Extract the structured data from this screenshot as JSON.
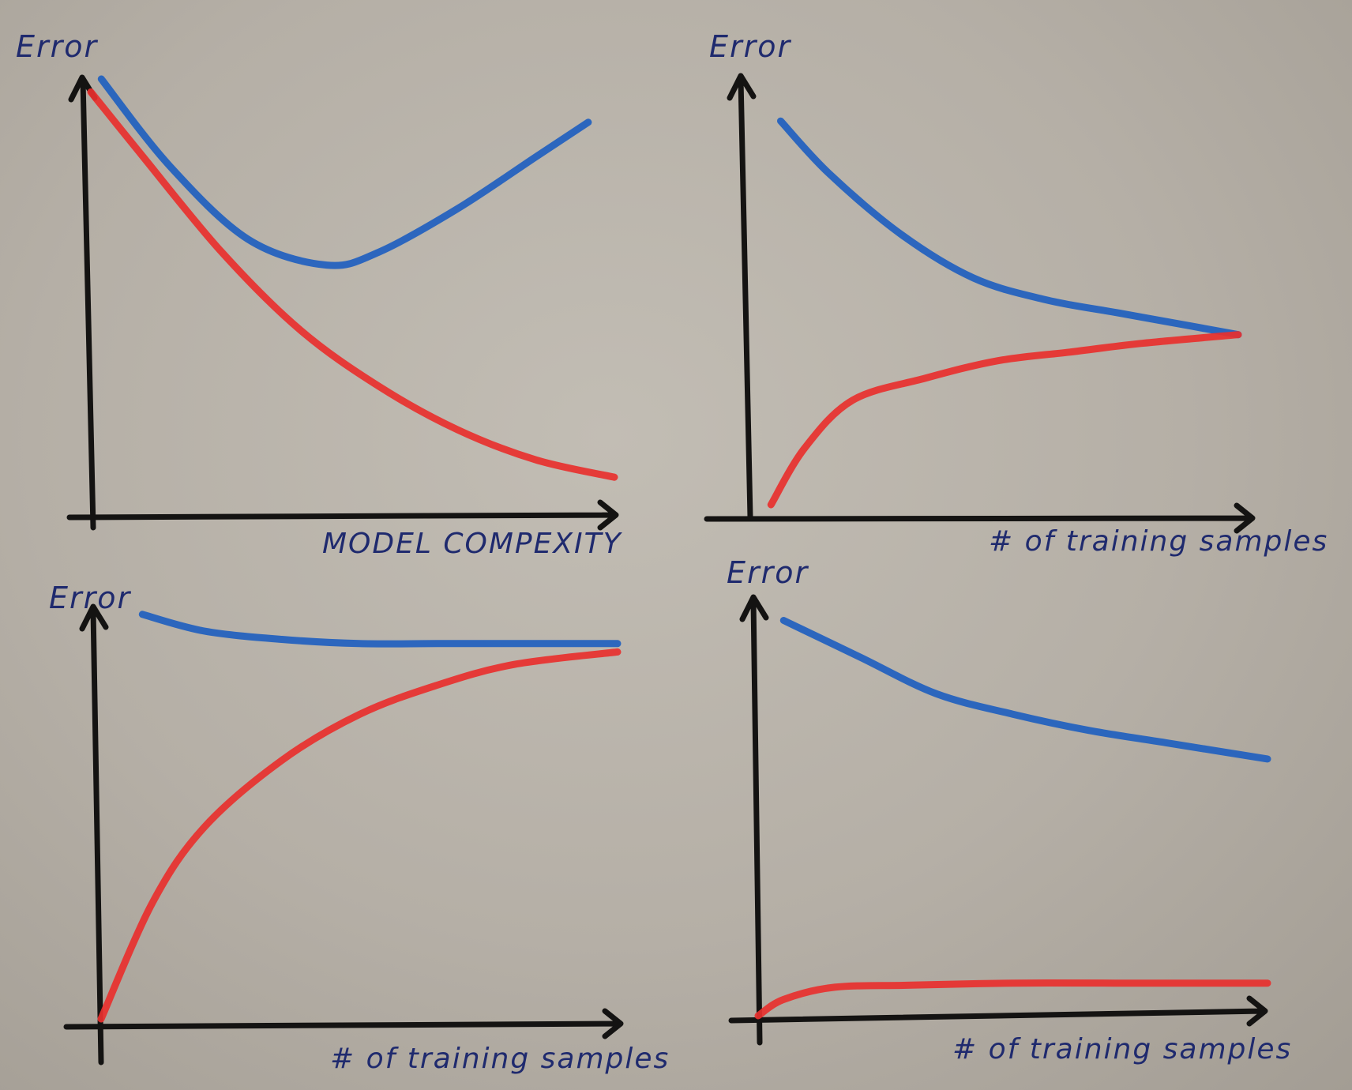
{
  "colors": {
    "validation": "#1f5fbf",
    "training": "#e8302e",
    "axis": "#141312",
    "ink": "#1f2a6e"
  },
  "chart_data": [
    {
      "type": "line",
      "ylabel": "Error",
      "xlabel": "MODEL COMPEXITY",
      "xlim": [
        0,
        1
      ],
      "ylim": [
        0,
        1
      ],
      "grid": false,
      "series": [
        {
          "color": "blue",
          "x": [
            0.02,
            0.15,
            0.3,
            0.45,
            0.55,
            0.7,
            0.85,
            0.95
          ],
          "y": [
            1.0,
            0.8,
            0.63,
            0.57,
            0.6,
            0.7,
            0.82,
            0.9
          ]
        },
        {
          "color": "red",
          "x": [
            0.0,
            0.1,
            0.25,
            0.4,
            0.55,
            0.7,
            0.85,
            1.0
          ],
          "y": [
            0.97,
            0.82,
            0.6,
            0.42,
            0.29,
            0.19,
            0.12,
            0.08
          ]
        }
      ]
    },
    {
      "type": "line",
      "ylabel": "Error",
      "xlabel": "# of training samples",
      "xlim": [
        0,
        1
      ],
      "ylim": [
        0,
        1
      ],
      "grid": false,
      "series": [
        {
          "color": "blue",
          "x": [
            0.05,
            0.15,
            0.3,
            0.45,
            0.6,
            0.75,
            0.9,
            1.0
          ],
          "y": [
            0.9,
            0.78,
            0.64,
            0.54,
            0.49,
            0.46,
            0.43,
            0.41
          ]
        },
        {
          "color": "red",
          "x": [
            0.03,
            0.1,
            0.2,
            0.35,
            0.5,
            0.65,
            0.8,
            1.0
          ],
          "y": [
            0.02,
            0.15,
            0.26,
            0.31,
            0.35,
            0.37,
            0.39,
            0.41
          ]
        }
      ]
    },
    {
      "type": "line",
      "ylabel": "Error",
      "xlabel": "# of training samples",
      "xlim": [
        0,
        1
      ],
      "ylim": [
        0,
        1
      ],
      "grid": false,
      "series": [
        {
          "color": "blue",
          "x": [
            0.08,
            0.2,
            0.35,
            0.5,
            0.65,
            0.8,
            1.0
          ],
          "y": [
            0.97,
            0.93,
            0.91,
            0.9,
            0.9,
            0.9,
            0.9
          ]
        },
        {
          "color": "red",
          "x": [
            0.0,
            0.1,
            0.2,
            0.35,
            0.5,
            0.65,
            0.8,
            1.0
          ],
          "y": [
            0.0,
            0.28,
            0.46,
            0.62,
            0.73,
            0.8,
            0.85,
            0.88
          ]
        }
      ]
    },
    {
      "type": "line",
      "ylabel": "Error",
      "xlabel": "# of training samples",
      "xlim": [
        0,
        1
      ],
      "ylim": [
        0,
        1
      ],
      "grid": false,
      "series": [
        {
          "color": "blue",
          "x": [
            0.05,
            0.2,
            0.35,
            0.5,
            0.65,
            0.8,
            1.0
          ],
          "y": [
            0.97,
            0.88,
            0.79,
            0.74,
            0.7,
            0.67,
            0.63
          ]
        },
        {
          "color": "red",
          "x": [
            0.0,
            0.05,
            0.15,
            0.3,
            0.5,
            0.7,
            0.85,
            1.0
          ],
          "y": [
            0.0,
            0.04,
            0.07,
            0.075,
            0.08,
            0.08,
            0.08,
            0.08
          ]
        }
      ]
    }
  ]
}
